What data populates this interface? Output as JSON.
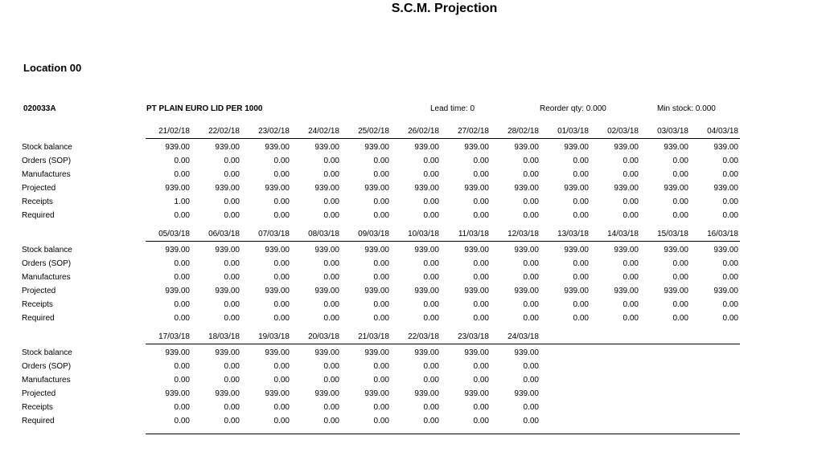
{
  "title": "S.C.M. Projection",
  "location": "Location 00",
  "item": {
    "code": "020033A",
    "description": "PT PLAIN EURO LID PER 1000",
    "lead_time": "Lead time: 0",
    "reorder_qty": "Reorder qty: 0.000",
    "min_stock": "Min stock: 0.000"
  },
  "row_labels": [
    "Stock balance",
    "Orders (SOP)",
    "Manufactures",
    "Projected",
    "Receipts",
    "Required"
  ],
  "sections": [
    {
      "dates": [
        "21/02/18",
        "22/02/18",
        "23/02/18",
        "24/02/18",
        "25/02/18",
        "26/02/18",
        "27/02/18",
        "28/02/18",
        "01/03/18",
        "02/03/18",
        "03/03/18",
        "04/03/18"
      ],
      "rows": [
        [
          "939.00",
          "939.00",
          "939.00",
          "939.00",
          "939.00",
          "939.00",
          "939.00",
          "939.00",
          "939.00",
          "939.00",
          "939.00",
          "939.00"
        ],
        [
          "0.00",
          "0.00",
          "0.00",
          "0.00",
          "0.00",
          "0.00",
          "0.00",
          "0.00",
          "0.00",
          "0.00",
          "0.00",
          "0.00"
        ],
        [
          "0.00",
          "0.00",
          "0.00",
          "0.00",
          "0.00",
          "0.00",
          "0.00",
          "0.00",
          "0.00",
          "0.00",
          "0.00",
          "0.00"
        ],
        [
          "939.00",
          "939.00",
          "939.00",
          "939.00",
          "939.00",
          "939.00",
          "939.00",
          "939.00",
          "939.00",
          "939.00",
          "939.00",
          "939.00"
        ],
        [
          "1.00",
          "0.00",
          "0.00",
          "0.00",
          "0.00",
          "0.00",
          "0.00",
          "0.00",
          "0.00",
          "0.00",
          "0.00",
          "0.00"
        ],
        [
          "0.00",
          "0.00",
          "0.00",
          "0.00",
          "0.00",
          "0.00",
          "0.00",
          "0.00",
          "0.00",
          "0.00",
          "0.00",
          "0.00"
        ]
      ]
    },
    {
      "dates": [
        "05/03/18",
        "06/03/18",
        "07/03/18",
        "08/03/18",
        "09/03/18",
        "10/03/18",
        "11/03/18",
        "12/03/18",
        "13/03/18",
        "14/03/18",
        "15/03/18",
        "16/03/18"
      ],
      "rows": [
        [
          "939.00",
          "939.00",
          "939.00",
          "939.00",
          "939.00",
          "939.00",
          "939.00",
          "939.00",
          "939.00",
          "939.00",
          "939.00",
          "939.00"
        ],
        [
          "0.00",
          "0.00",
          "0.00",
          "0.00",
          "0.00",
          "0.00",
          "0.00",
          "0.00",
          "0.00",
          "0.00",
          "0.00",
          "0.00"
        ],
        [
          "0.00",
          "0.00",
          "0.00",
          "0.00",
          "0.00",
          "0.00",
          "0.00",
          "0.00",
          "0.00",
          "0.00",
          "0.00",
          "0.00"
        ],
        [
          "939.00",
          "939.00",
          "939.00",
          "939.00",
          "939.00",
          "939.00",
          "939.00",
          "939.00",
          "939.00",
          "939.00",
          "939.00",
          "939.00"
        ],
        [
          "0.00",
          "0.00",
          "0.00",
          "0.00",
          "0.00",
          "0.00",
          "0.00",
          "0.00",
          "0.00",
          "0.00",
          "0.00",
          "0.00"
        ],
        [
          "0.00",
          "0.00",
          "0.00",
          "0.00",
          "0.00",
          "0.00",
          "0.00",
          "0.00",
          "0.00",
          "0.00",
          "0.00",
          "0.00"
        ]
      ]
    },
    {
      "dates": [
        "17/03/18",
        "18/03/18",
        "19/03/18",
        "20/03/18",
        "21/03/18",
        "22/03/18",
        "23/03/18",
        "24/03/18"
      ],
      "rows": [
        [
          "939.00",
          "939.00",
          "939.00",
          "939.00",
          "939.00",
          "939.00",
          "939.00",
          "939.00"
        ],
        [
          "0.00",
          "0.00",
          "0.00",
          "0.00",
          "0.00",
          "0.00",
          "0.00",
          "0.00"
        ],
        [
          "0.00",
          "0.00",
          "0.00",
          "0.00",
          "0.00",
          "0.00",
          "0.00",
          "0.00"
        ],
        [
          "939.00",
          "939.00",
          "939.00",
          "939.00",
          "939.00",
          "939.00",
          "939.00",
          "939.00"
        ],
        [
          "0.00",
          "0.00",
          "0.00",
          "0.00",
          "0.00",
          "0.00",
          "0.00",
          "0.00"
        ],
        [
          "0.00",
          "0.00",
          "0.00",
          "0.00",
          "0.00",
          "0.00",
          "0.00",
          "0.00"
        ]
      ]
    }
  ]
}
